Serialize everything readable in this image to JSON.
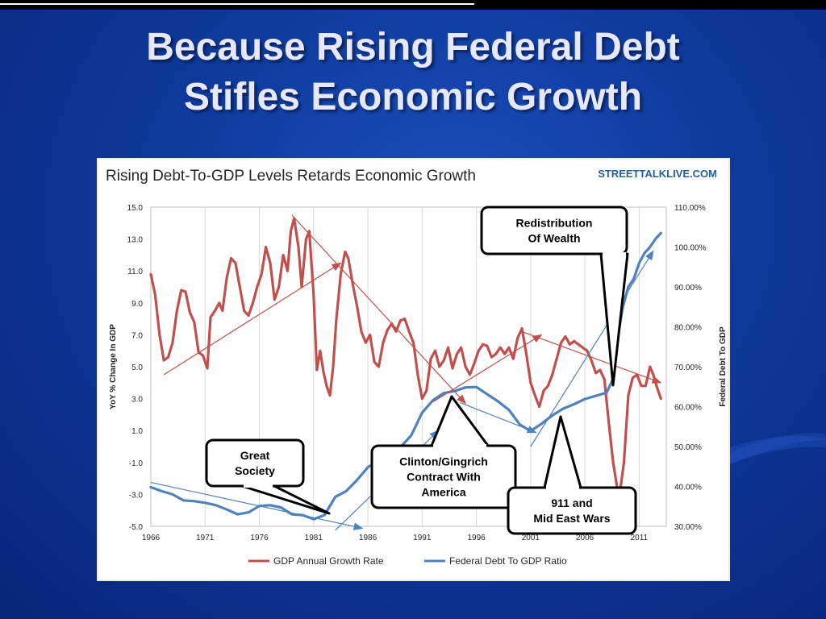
{
  "slide": {
    "title_line1": "Because Rising Federal Debt",
    "title_line2": "Stifles Economic Growth"
  },
  "chart_data": {
    "type": "line",
    "title": "Rising Debt-To-GDP Levels Retards Economic Growth",
    "source": "STREETTALKLIVE.COM",
    "ylabel": "YoY % Change  In GDP",
    "y2label": "Federal Debt To GDP",
    "x_ticks": [
      "1966",
      "1971",
      "1976",
      "1981",
      "1986",
      "1991",
      "1996",
      "2001",
      "2006",
      "2011"
    ],
    "y_ticks": [
      "15.0",
      "13.0",
      "11.0",
      "9.0",
      "7.0",
      "5.0",
      "3.0",
      "1.0",
      "-1.0",
      "-3.0",
      "-5.0"
    ],
    "y2_ticks": [
      "110.00%",
      "100.00%",
      "90.00%",
      "80.00%",
      "70.00%",
      "60.00%",
      "50.00%",
      "40.00%",
      "30.00%"
    ],
    "ylim": [
      -5,
      15
    ],
    "y2lim": [
      30,
      110
    ],
    "xlim": [
      1966,
      2013.5
    ],
    "legend": [
      "GDP Annual Growth Rate",
      "Federal Debt To GDP Ratio"
    ],
    "series": [
      {
        "name": "GDP Annual Growth Rate",
        "color": "#c0504d",
        "axis": "left",
        "points": [
          [
            1966.0,
            10.8
          ],
          [
            1966.4,
            9.5
          ],
          [
            1966.8,
            7.0
          ],
          [
            1967.2,
            5.4
          ],
          [
            1967.6,
            5.6
          ],
          [
            1968.0,
            6.5
          ],
          [
            1968.4,
            8.5
          ],
          [
            1968.8,
            9.8
          ],
          [
            1969.2,
            9.7
          ],
          [
            1969.6,
            8.4
          ],
          [
            1970.0,
            7.8
          ],
          [
            1970.4,
            5.9
          ],
          [
            1970.8,
            5.7
          ],
          [
            1971.2,
            4.9
          ],
          [
            1971.5,
            8.1
          ],
          [
            1971.9,
            8.5
          ],
          [
            1972.3,
            9.0
          ],
          [
            1972.6,
            8.5
          ],
          [
            1973.0,
            10.6
          ],
          [
            1973.4,
            11.8
          ],
          [
            1973.8,
            11.5
          ],
          [
            1974.2,
            10.0
          ],
          [
            1974.6,
            8.5
          ],
          [
            1975.0,
            8.2
          ],
          [
            1975.4,
            9.0
          ],
          [
            1975.8,
            10.0
          ],
          [
            1976.2,
            10.8
          ],
          [
            1976.6,
            12.5
          ],
          [
            1977.0,
            11.5
          ],
          [
            1977.4,
            9.2
          ],
          [
            1977.8,
            10.0
          ],
          [
            1978.2,
            12.0
          ],
          [
            1978.6,
            11.0
          ],
          [
            1978.9,
            13.5
          ],
          [
            1979.2,
            14.3
          ],
          [
            1979.6,
            12.5
          ],
          [
            1979.9,
            10.0
          ],
          [
            1980.3,
            13.0
          ],
          [
            1980.6,
            13.5
          ],
          [
            1981.0,
            9.5
          ],
          [
            1981.3,
            4.8
          ],
          [
            1981.6,
            6.0
          ],
          [
            1981.9,
            4.7
          ],
          [
            1982.2,
            3.8
          ],
          [
            1982.5,
            3.2
          ],
          [
            1982.8,
            5.0
          ],
          [
            1983.1,
            8.0
          ],
          [
            1983.5,
            10.8
          ],
          [
            1983.9,
            12.2
          ],
          [
            1984.2,
            11.8
          ],
          [
            1984.6,
            10.2
          ],
          [
            1985.0,
            8.8
          ],
          [
            1985.4,
            7.2
          ],
          [
            1985.8,
            6.5
          ],
          [
            1986.2,
            7.0
          ],
          [
            1986.6,
            5.3
          ],
          [
            1987.0,
            5.0
          ],
          [
            1987.4,
            6.5
          ],
          [
            1987.8,
            7.3
          ],
          [
            1988.2,
            7.7
          ],
          [
            1988.6,
            7.2
          ],
          [
            1989.0,
            7.9
          ],
          [
            1989.4,
            8.0
          ],
          [
            1989.8,
            7.2
          ],
          [
            1990.2,
            6.5
          ],
          [
            1990.6,
            4.5
          ],
          [
            1991.0,
            3.0
          ],
          [
            1991.4,
            3.5
          ],
          [
            1991.8,
            5.5
          ],
          [
            1992.2,
            6.0
          ],
          [
            1992.6,
            5.0
          ],
          [
            1993.0,
            5.4
          ],
          [
            1993.4,
            6.2
          ],
          [
            1993.8,
            4.9
          ],
          [
            1994.2,
            5.8
          ],
          [
            1994.6,
            6.2
          ],
          [
            1995.0,
            5.0
          ],
          [
            1995.4,
            4.5
          ],
          [
            1995.8,
            5.2
          ],
          [
            1996.2,
            6.0
          ],
          [
            1996.6,
            6.4
          ],
          [
            1997.0,
            6.3
          ],
          [
            1997.4,
            5.6
          ],
          [
            1997.8,
            5.8
          ],
          [
            1998.2,
            6.2
          ],
          [
            1998.6,
            5.8
          ],
          [
            1999.0,
            6.2
          ],
          [
            1999.4,
            5.5
          ],
          [
            1999.8,
            6.8
          ],
          [
            2000.2,
            7.4
          ],
          [
            2000.6,
            5.8
          ],
          [
            2001.0,
            4.0
          ],
          [
            2001.4,
            3.2
          ],
          [
            2001.8,
            2.5
          ],
          [
            2002.2,
            3.5
          ],
          [
            2002.6,
            3.8
          ],
          [
            2003.0,
            4.5
          ],
          [
            2003.4,
            5.5
          ],
          [
            2003.8,
            6.5
          ],
          [
            2004.2,
            6.9
          ],
          [
            2004.6,
            6.4
          ],
          [
            2005.0,
            6.6
          ],
          [
            2005.4,
            6.4
          ],
          [
            2005.8,
            6.2
          ],
          [
            2006.2,
            6.0
          ],
          [
            2006.6,
            5.4
          ],
          [
            2007.0,
            4.6
          ],
          [
            2007.4,
            4.8
          ],
          [
            2007.8,
            4.2
          ],
          [
            2008.2,
            1.5
          ],
          [
            2008.6,
            -1.0
          ],
          [
            2009.0,
            -2.7
          ],
          [
            2009.3,
            -2.5
          ],
          [
            2009.6,
            -1.0
          ],
          [
            2010.0,
            3.2
          ],
          [
            2010.4,
            4.3
          ],
          [
            2010.8,
            4.5
          ],
          [
            2011.2,
            3.8
          ],
          [
            2011.6,
            3.8
          ],
          [
            2012.0,
            5.0
          ],
          [
            2012.3,
            4.5
          ],
          [
            2012.6,
            3.8
          ],
          [
            2013.0,
            3.0
          ]
        ]
      },
      {
        "name": "Federal Debt To GDP Ratio",
        "color": "#4f81bd",
        "axis": "right",
        "points": [
          [
            1966.0,
            39.8
          ],
          [
            1967.0,
            38.8
          ],
          [
            1968.0,
            38.0
          ],
          [
            1969.0,
            36.5
          ],
          [
            1970.0,
            36.3
          ],
          [
            1971.0,
            35.9
          ],
          [
            1972.0,
            35.3
          ],
          [
            1973.0,
            34.2
          ],
          [
            1974.0,
            33.0
          ],
          [
            1975.0,
            33.5
          ],
          [
            1976.0,
            35.1
          ],
          [
            1977.0,
            35.3
          ],
          [
            1978.0,
            34.7
          ],
          [
            1979.0,
            33.0
          ],
          [
            1980.0,
            32.8
          ],
          [
            1981.0,
            31.8
          ],
          [
            1982.0,
            32.8
          ],
          [
            1983.0,
            37.4
          ],
          [
            1984.0,
            38.8
          ],
          [
            1985.0,
            41.6
          ],
          [
            1986.0,
            44.8
          ],
          [
            1987.0,
            46.6
          ],
          [
            1988.0,
            47.8
          ],
          [
            1989.0,
            49.8
          ],
          [
            1990.0,
            52.8
          ],
          [
            1991.0,
            58.5
          ],
          [
            1992.0,
            61.6
          ],
          [
            1993.0,
            63.4
          ],
          [
            1994.0,
            63.9
          ],
          [
            1995.0,
            64.8
          ],
          [
            1996.0,
            64.9
          ],
          [
            1997.0,
            63.1
          ],
          [
            1998.0,
            61.3
          ],
          [
            1999.0,
            59.2
          ],
          [
            2000.0,
            55.5
          ],
          [
            2001.0,
            53.9
          ],
          [
            2002.0,
            55.7
          ],
          [
            2003.0,
            57.8
          ],
          [
            2004.0,
            59.5
          ],
          [
            2005.0,
            60.6
          ],
          [
            2006.0,
            61.9
          ],
          [
            2007.0,
            62.7
          ],
          [
            2008.0,
            63.5
          ],
          [
            2008.6,
            67.0
          ],
          [
            2009.0,
            77.0
          ],
          [
            2009.5,
            85.0
          ],
          [
            2010.0,
            90.0
          ],
          [
            2010.5,
            92.0
          ],
          [
            2011.0,
            96.0
          ],
          [
            2011.5,
            98.5
          ],
          [
            2012.0,
            100.0
          ],
          [
            2012.5,
            102.0
          ],
          [
            2013.0,
            103.5
          ]
        ]
      }
    ],
    "trend_arrows": [
      {
        "color": "#c0504d",
        "x1": 1967.2,
        "y1": 4.5,
        "x2": 1983.5,
        "y2": 11.5
      },
      {
        "color": "#c0504d",
        "x1": 1979.0,
        "y1": 14.5,
        "x2": 1995.0,
        "y2": 2.7
      },
      {
        "color": "#c0504d",
        "x1": 1992.0,
        "y1": 2.8,
        "x2": 2002.0,
        "y2": 7.0
      },
      {
        "color": "#c0504d",
        "x1": 2000.2,
        "y1": 7.2,
        "x2": 2013.0,
        "y2": 4.0
      },
      {
        "color": "#4f81bd",
        "x1": 1966.0,
        "y1": 41.0,
        "x2": 1985.5,
        "y2": 29.5,
        "axis": "right"
      },
      {
        "color": "#4f81bd",
        "x1": 1983.0,
        "y1": 29.0,
        "x2": 1992.5,
        "y2": 54.0,
        "axis": "right"
      },
      {
        "color": "#4f81bd",
        "x1": 1994.5,
        "y1": 61.0,
        "x2": 2001.5,
        "y2": 53.5,
        "axis": "right"
      },
      {
        "color": "#4f81bd",
        "x1": 2001.0,
        "y1": 50.0,
        "x2": 2012.3,
        "y2": 99.0,
        "axis": "right"
      }
    ],
    "callouts": [
      {
        "lines": [
          "Redistribution",
          "Of Wealth"
        ]
      },
      {
        "lines": [
          "Great",
          "Society"
        ]
      },
      {
        "lines": [
          "Clinton/Gingrich",
          "Contract With",
          "America"
        ]
      },
      {
        "lines": [
          "911 and",
          "Mid East Wars"
        ]
      }
    ]
  }
}
